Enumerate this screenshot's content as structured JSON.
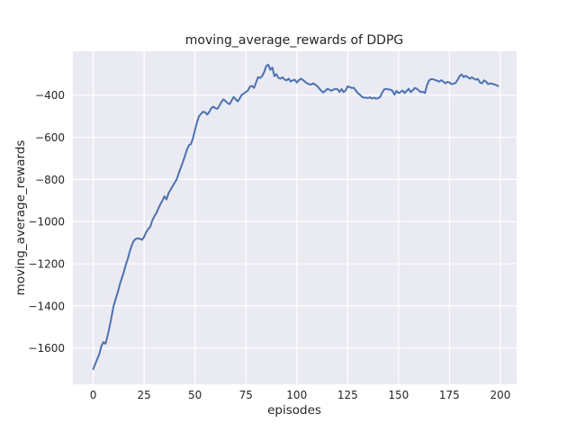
{
  "chart_data": {
    "type": "line",
    "title": "moving_average_rewards of DDPG",
    "xlabel": "episodes",
    "ylabel": "moving_average_rewards",
    "style": "seaborn-darkgrid",
    "grid": true,
    "legend": "none",
    "xlim": [
      -10,
      208
    ],
    "ylim": [
      -1772,
      -192
    ],
    "xticks": [
      0,
      25,
      50,
      75,
      100,
      125,
      150,
      175,
      200
    ],
    "yticks": [
      -400,
      -600,
      -800,
      -1000,
      -1200,
      -1400,
      -1600
    ],
    "colors": {
      "line": "#4C72B0",
      "axes_background": "#EAEAF2",
      "grid": "#FFFFFF",
      "figure_background": "#FFFFFF",
      "text": "#262626"
    },
    "series": [
      {
        "name": "moving_average_rewards",
        "x_start": 0,
        "x_step": 1,
        "y": [
          -1700,
          -1675,
          -1652,
          -1628,
          -1590,
          -1572,
          -1580,
          -1545,
          -1500,
          -1450,
          -1400,
          -1368,
          -1336,
          -1300,
          -1270,
          -1240,
          -1205,
          -1175,
          -1140,
          -1110,
          -1090,
          -1082,
          -1080,
          -1082,
          -1086,
          -1072,
          -1050,
          -1035,
          -1025,
          -995,
          -975,
          -960,
          -938,
          -918,
          -900,
          -880,
          -895,
          -865,
          -848,
          -832,
          -815,
          -800,
          -770,
          -745,
          -718,
          -690,
          -660,
          -638,
          -632,
          -605,
          -565,
          -528,
          -500,
          -488,
          -478,
          -482,
          -492,
          -480,
          -462,
          -455,
          -462,
          -465,
          -450,
          -432,
          -420,
          -428,
          -438,
          -443,
          -425,
          -408,
          -420,
          -430,
          -415,
          -398,
          -392,
          -385,
          -378,
          -360,
          -356,
          -366,
          -340,
          -315,
          -318,
          -310,
          -290,
          -262,
          -255,
          -280,
          -269,
          -310,
          -300,
          -318,
          -322,
          -315,
          -326,
          -330,
          -322,
          -335,
          -330,
          -327,
          -340,
          -330,
          -322,
          -328,
          -336,
          -344,
          -348,
          -350,
          -344,
          -350,
          -357,
          -368,
          -379,
          -387,
          -380,
          -370,
          -374,
          -379,
          -374,
          -370,
          -372,
          -385,
          -371,
          -386,
          -378,
          -358,
          -362,
          -366,
          -365,
          -378,
          -390,
          -398,
          -408,
          -412,
          -412,
          -414,
          -410,
          -416,
          -412,
          -417,
          -414,
          -408,
          -388,
          -372,
          -370,
          -373,
          -374,
          -380,
          -398,
          -380,
          -390,
          -385,
          -378,
          -390,
          -380,
          -370,
          -386,
          -376,
          -366,
          -370,
          -378,
          -386,
          -384,
          -390,
          -352,
          -330,
          -324,
          -325,
          -328,
          -332,
          -336,
          -329,
          -336,
          -344,
          -337,
          -340,
          -348,
          -346,
          -342,
          -328,
          -310,
          -302,
          -314,
          -308,
          -315,
          -322,
          -315,
          -322,
          -327,
          -323,
          -340,
          -344,
          -330,
          -336,
          -348,
          -344,
          -346,
          -349,
          -352,
          -357
        ]
      }
    ]
  }
}
